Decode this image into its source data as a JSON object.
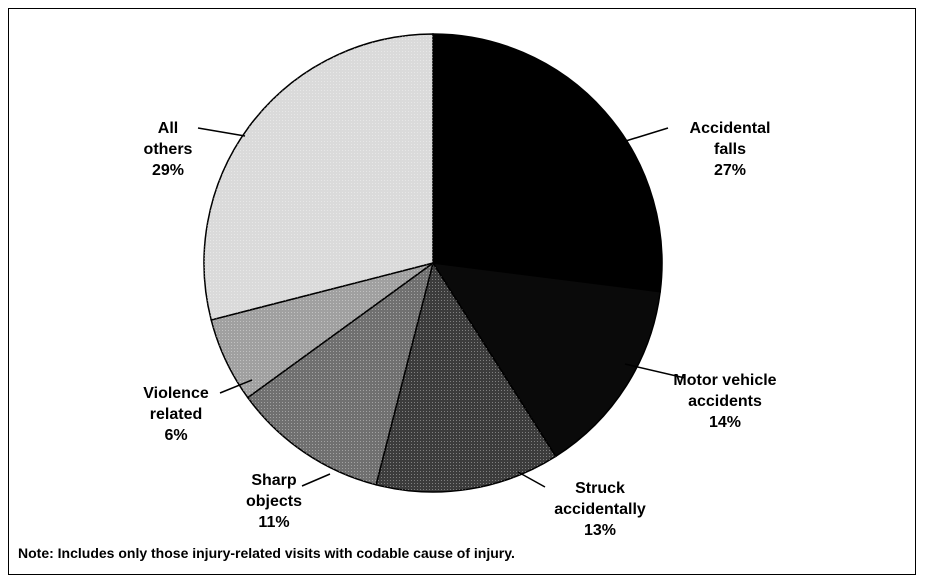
{
  "chart_data": {
    "type": "pie",
    "categories": [
      "Accidental falls",
      "Motor vehicle accidents",
      "Struck accidentally",
      "Sharp objects",
      "Violence related",
      "All others"
    ],
    "values": [
      27,
      14,
      13,
      11,
      6,
      29
    ],
    "value_labels": [
      "27%",
      "14%",
      "13%",
      "11%",
      "6%",
      "29%"
    ],
    "colors": [
      "#000000",
      "#0a0a0a",
      "#3c3c3c",
      "#707070",
      "#a0a0a0",
      "#dadada"
    ],
    "note": "Note: Includes only those injury-related visits with codable cause of injury."
  }
}
